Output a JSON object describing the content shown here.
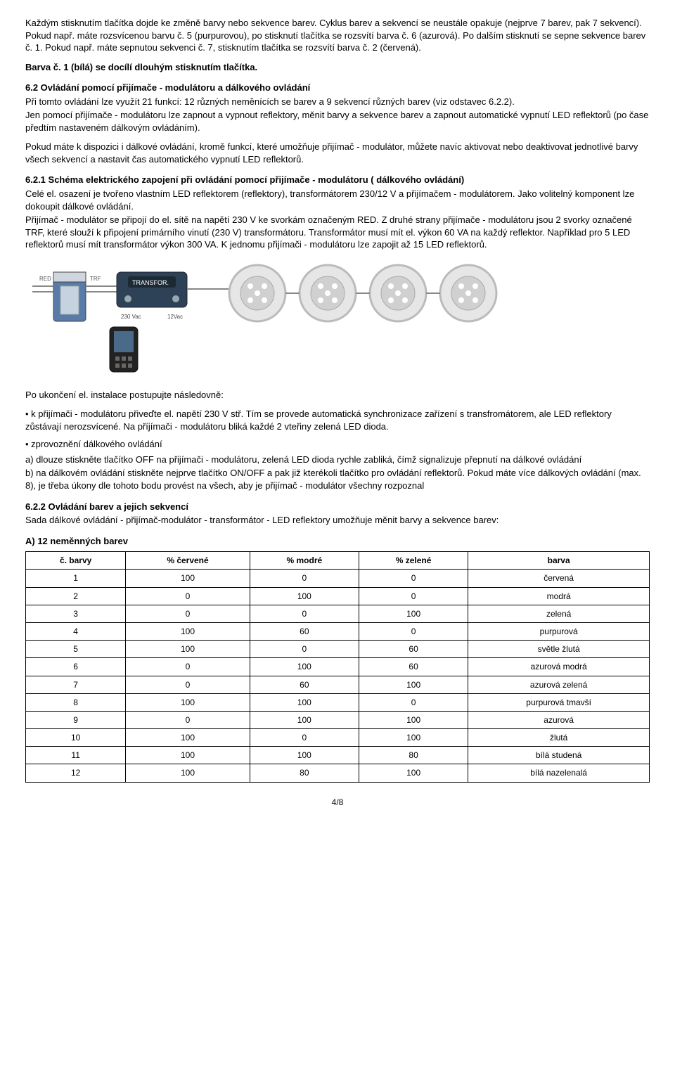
{
  "p1": "Každým stisknutím tlačítka dojde ke změně barvy nebo sekvence barev. Cyklus barev a sekvencí se neustále opakuje (nejprve 7 barev, pak 7 sekvencí). Pokud např. máte rozsvícenou barvu č. 5 (purpurovou), po stisknutí tlačítka se rozsvítí barva č. 6 (azurová). Po dalším stisknutí se sepne sekvence barev č. 1. Pokud např. máte sepnutou sekvenci č. 7, stisknutím tlačítka se rozsvítí barva č. 2 (červená).",
  "p2": "Barva č. 1 (bílá) se docílí dlouhým stisknutím tlačítka.",
  "h62": "6.2 Ovládání pomocí přijímače - modulátoru a dálkového ovládání",
  "p3": "Při tomto ovládání lze využít 21 funkcí: 12 různých neměnících se barev a 9 sekvencí různých barev (viz odstavec 6.2.2).",
  "p4": "Jen pomocí přijímače - modulátoru lze zapnout a vypnout reflektory, měnit barvy a sekvence barev a zapnout automatické vypnutí LED reflektorů (po čase předtím nastaveném dálkovým ovládáním).",
  "p5": "Pokud máte k dispozici i dálkové ovládání, kromě funkcí, které umožňuje přijímač - modulátor, můžete navíc aktivovat nebo deaktivovat  jednotlivé barvy všech sekvencí a nastavit čas automatického vypnutí LED reflektorů.",
  "h621": "6.2.1 Schéma elektrického zapojení při ovládání pomocí přijímače - modulátoru ( dálkového ovládání)",
  "p6": "Celé el. osazení je tvořeno vlastním LED reflektorem (reflektory), transformátorem 230/12 V a přijímačem - modulátorem. Jako volitelný komponent lze dokoupit dálkové ovládání.",
  "p7": "Přijímač - modulátor se připojí do el. sítě na napětí 230 V ke svorkám označeným RED. Z druhé strany přijímače - modulátoru jsou 2 svorky označené TRF, které slouží k připojení primárního vinutí (230 V) transformátoru. Transformátor musí mít el. výkon 60 VA na každý reflektor. Například pro 5 LED reflektorů musí mít transformátor výkon 300 VA.  K jednomu přijímači - modulátoru lze zapojit až 15 LED reflektorů.",
  "illus_labels": {
    "red": "RED",
    "trf": "TRF",
    "transf": "TRANSFOR.",
    "v230": "230 Vac",
    "v12": "12Vac"
  },
  "p8": "Po ukončení el. instalace postupujte následovně:",
  "p9": "• k přijímači - modulátoru přiveďte el. napětí 230 V stř. Tím se provede automatická synchronizace zařízení s transfromátorem, ale LED reflektory zůstávají nerozsvícené. Na příjímači - modulátoru bliká každé 2 vteřiny zelená LED dioda.",
  "p10": "• zprovoznění dálkového ovládání",
  "p11a": "a) dlouze stiskněte tlačítko OFF na přijímači - modulátoru, zelená LED dioda rychle zabliká, čímž signalizuje přepnutí na dálkové ovládání",
  "p11b": "b) na dálkovém ovládání stiskněte nejprve tlačítko ON/OFF a pak již kterékoli tlačítko pro ovládání reflektorů. Pokud máte více dálkových ovládání (max. 8), je třeba úkony dle tohoto bodu provést na všech, aby je přijímač - modulátor všechny rozpoznal",
  "h622": "6.2.2 Ovládání barev a jejich sekvencí",
  "p12": "Sada dálkové ovládání - přijímač-modulátor - transformátor - LED reflektory umožňuje měnit barvy a sekvence barev:",
  "tableAHead": "A) 12 neměnných barev",
  "tableA": {
    "columns": [
      "č. barvy",
      "% červené",
      "% modré",
      "% zelené",
      "barva"
    ],
    "rows": [
      [
        "1",
        "100",
        "0",
        "0",
        "červená"
      ],
      [
        "2",
        "0",
        "100",
        "0",
        "modrá"
      ],
      [
        "3",
        "0",
        "0",
        "100",
        "zelená"
      ],
      [
        "4",
        "100",
        "60",
        "0",
        "purpurová"
      ],
      [
        "5",
        "100",
        "0",
        "60",
        "světle žlutá"
      ],
      [
        "6",
        "0",
        "100",
        "60",
        "azurová modrá"
      ],
      [
        "7",
        "0",
        "60",
        "100",
        "azurová zelená"
      ],
      [
        "8",
        "100",
        "100",
        "0",
        "purpurová tmavší"
      ],
      [
        "9",
        "0",
        "100",
        "100",
        "azurová"
      ],
      [
        "10",
        "100",
        "0",
        "100",
        "žlutá"
      ],
      [
        "11",
        "100",
        "100",
        "80",
        "bílá studená"
      ],
      [
        "12",
        "100",
        "80",
        "100",
        "bílá nazelenalá"
      ]
    ]
  },
  "footer": "4/8"
}
